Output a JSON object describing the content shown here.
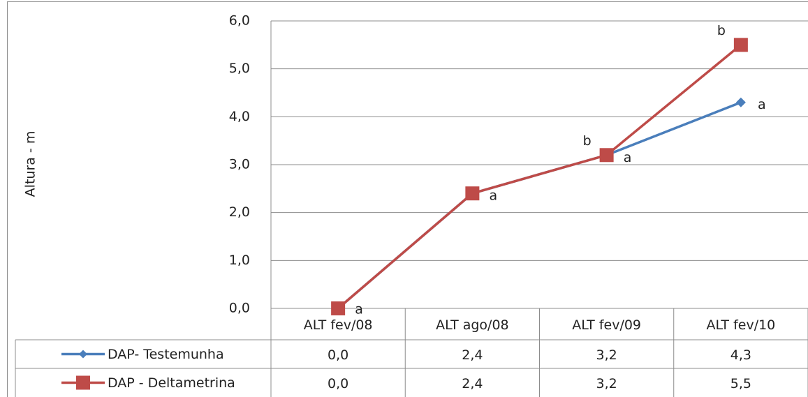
{
  "chart_data": {
    "type": "line",
    "y_label": "Altura - m",
    "categories": [
      "ALT fev/08",
      "ALT ago/08",
      "ALT fev/09",
      "ALT fev/10"
    ],
    "series": [
      {
        "name": "DAP- Testemunha",
        "color": "#4a7ebb",
        "marker": "diamond",
        "values": [
          0,
          2.4,
          3.2,
          4.3
        ],
        "value_labels": [
          "0,0",
          "2,4",
          "3,2",
          "4,3"
        ],
        "point_labels": [
          null,
          null,
          "a",
          "a"
        ]
      },
      {
        "name": "DAP - Deltametrina",
        "color": "#be4b48",
        "marker": "square",
        "values": [
          0,
          2.4,
          3.2,
          5.5
        ],
        "value_labels": [
          "0,0",
          "2,4",
          "3,2",
          "5,5"
        ],
        "point_labels": [
          "a",
          "a",
          "b",
          "b"
        ]
      }
    ],
    "ylim": [
      0,
      6
    ],
    "yticks": [
      {
        "value": 0,
        "label": "0,0"
      },
      {
        "value": 1,
        "label": "1,0"
      },
      {
        "value": 2,
        "label": "2,0"
      },
      {
        "value": 3,
        "label": "3,0"
      },
      {
        "value": 4,
        "label": "4,0"
      },
      {
        "value": 5,
        "label": "5,0"
      },
      {
        "value": 6,
        "label": "6,0"
      }
    ],
    "grid": true,
    "data_table": true
  }
}
